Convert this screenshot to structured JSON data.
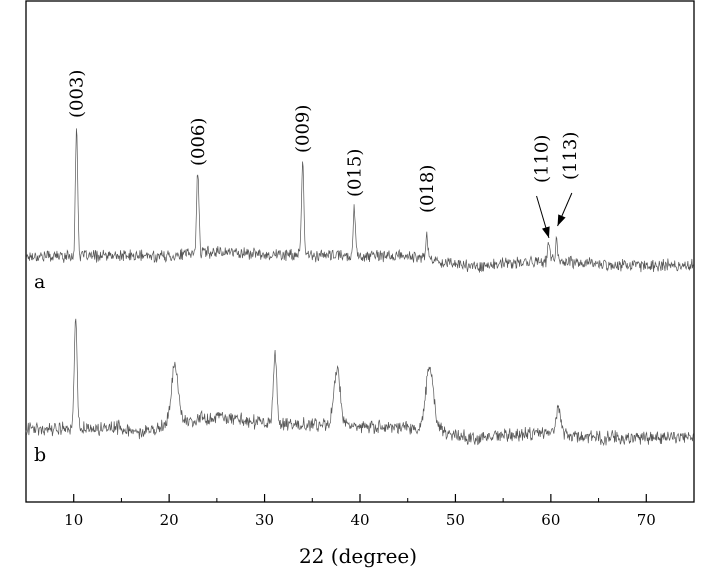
{
  "chart_data": {
    "type": "line",
    "title": "",
    "xlabel": "22 (degree)",
    "ylabel": "",
    "xlim": [
      5,
      75
    ],
    "xticks": [
      10,
      20,
      30,
      40,
      50,
      60,
      70
    ],
    "minor_xticks": [
      15,
      25,
      35,
      45,
      55,
      65
    ],
    "grid": false,
    "y_ticks_shown": false,
    "line_color": "#555555",
    "series": [
      {
        "name": "a",
        "baseline": [
          [
            5,
            0.0
          ],
          [
            20,
            0.0
          ],
          [
            25,
            0.06
          ],
          [
            30,
            0.02
          ],
          [
            40,
            0.0
          ],
          [
            45,
            0.0
          ],
          [
            48,
            -0.06
          ],
          [
            52,
            -0.13
          ],
          [
            56,
            -0.09
          ],
          [
            60,
            -0.06
          ],
          [
            65,
            -0.1
          ],
          [
            70,
            -0.12
          ],
          [
            75,
            -0.11
          ]
        ],
        "noise": 0.06,
        "peaks": [
          {
            "x": 10.3,
            "height": 1.6,
            "width": 0.12,
            "label": "(003)"
          },
          {
            "x": 23.0,
            "height": 1.05,
            "width": 0.12,
            "label": "(006)"
          },
          {
            "x": 34.0,
            "height": 1.15,
            "width": 0.12,
            "label": "(009)"
          },
          {
            "x": 39.4,
            "height": 0.6,
            "width": 0.12,
            "label": "(015)"
          },
          {
            "x": 47.0,
            "height": 0.3,
            "width": 0.12,
            "label": "(018)"
          },
          {
            "x": 59.8,
            "height": 0.26,
            "width": 0.1,
            "label": "(110)"
          },
          {
            "x": 60.6,
            "height": 0.26,
            "width": 0.1,
            "label": "(113)"
          }
        ]
      },
      {
        "name": "b",
        "baseline": [
          [
            5,
            0.0
          ],
          [
            15,
            0.0
          ],
          [
            17,
            -0.08
          ],
          [
            20,
            0.05
          ],
          [
            25,
            0.14
          ],
          [
            30,
            0.06
          ],
          [
            35,
            0.04
          ],
          [
            40,
            0.02
          ],
          [
            45,
            0.0
          ],
          [
            48,
            -0.02
          ],
          [
            52,
            -0.14
          ],
          [
            56,
            -0.08
          ],
          [
            60,
            -0.06
          ],
          [
            65,
            -0.12
          ],
          [
            70,
            -0.12
          ],
          [
            75,
            -0.11
          ]
        ],
        "noise": 0.07,
        "peaks": [
          {
            "x": 10.2,
            "height": 1.35,
            "width": 0.15
          },
          {
            "x": 20.6,
            "height": 0.75,
            "width": 0.35
          },
          {
            "x": 31.1,
            "height": 0.85,
            "width": 0.18
          },
          {
            "x": 37.6,
            "height": 0.7,
            "width": 0.35
          },
          {
            "x": 47.3,
            "height": 0.78,
            "width": 0.4
          },
          {
            "x": 60.8,
            "height": 0.32,
            "width": 0.25
          }
        ]
      }
    ],
    "annotations": [
      "(003)",
      "(006)",
      "(009)",
      "(015)",
      "(018)",
      "(110)",
      "(113)"
    ]
  }
}
